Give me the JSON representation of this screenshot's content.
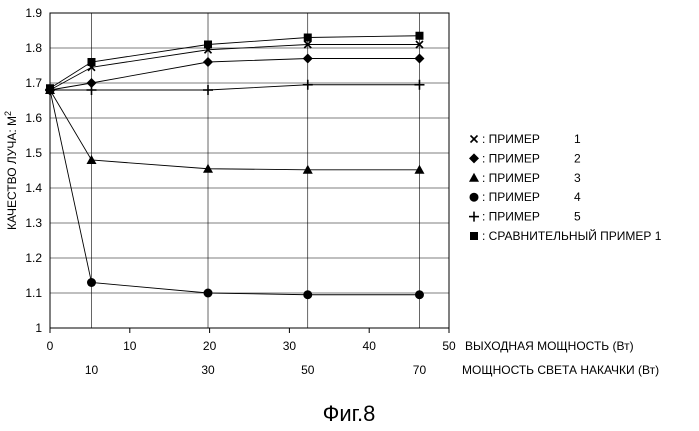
{
  "chart_data": {
    "type": "line",
    "ylabel": "КАЧЕСТВО ЛУЧА: M",
    "ylabel_sup": "2",
    "x_primary_label": "ВЫХОДНАЯ МОЩНОСТЬ (Вт)",
    "x_secondary_label": "МОЩНОСТЬ СВЕТА НАКАЧКИ (Вт)",
    "xlim": [
      0,
      50
    ],
    "ylim": [
      1.0,
      1.9
    ],
    "x_ticks": [
      "0",
      "10",
      "20",
      "30",
      "40",
      "50"
    ],
    "x_secondary_ticks": [
      {
        "label": "10",
        "at": 5.2
      },
      {
        "label": "30",
        "at": 19.8
      },
      {
        "label": "50",
        "at": 32.3
      },
      {
        "label": "70",
        "at": 46.3
      }
    ],
    "y_ticks": [
      "1",
      "1.1",
      "1.2",
      "1.3",
      "1.4",
      "1.5",
      "1.6",
      "1.7",
      "1.8",
      "1.9"
    ],
    "grid": true,
    "legend_position": "right",
    "series": [
      {
        "name": "ПРИМЕР",
        "num": "1",
        "marker": "x",
        "x": [
          0,
          5.2,
          19.8,
          32.3,
          46.3
        ],
        "y": [
          1.68,
          1.745,
          1.795,
          1.81,
          1.81
        ]
      },
      {
        "name": "ПРИМЕР",
        "num": "2",
        "marker": "diamond",
        "x": [
          0,
          5.2,
          19.8,
          32.3,
          46.3
        ],
        "y": [
          1.68,
          1.7,
          1.76,
          1.77,
          1.77
        ]
      },
      {
        "name": "ПРИМЕР",
        "num": "3",
        "marker": "triangle",
        "x": [
          0,
          5.2,
          19.8,
          32.3,
          46.3
        ],
        "y": [
          1.68,
          1.48,
          1.455,
          1.452,
          1.452
        ]
      },
      {
        "name": "ПРИМЕР",
        "num": "4",
        "marker": "circle",
        "x": [
          0,
          5.2,
          19.8,
          32.3,
          46.3
        ],
        "y": [
          1.68,
          1.13,
          1.1,
          1.095,
          1.095
        ]
      },
      {
        "name": "ПРИМЕР",
        "num": "5",
        "marker": "plus",
        "x": [
          0,
          5.2,
          19.8,
          32.3,
          46.3
        ],
        "y": [
          1.68,
          1.68,
          1.68,
          1.695,
          1.695
        ]
      },
      {
        "name": "СРАВНИТЕЛЬНЫЙ ПРИМЕР 1",
        "num": "",
        "marker": "square",
        "x": [
          0,
          5.2,
          19.8,
          32.3,
          46.3
        ],
        "y": [
          1.685,
          1.76,
          1.81,
          1.83,
          1.835
        ]
      }
    ]
  },
  "caption": "Фиг.8"
}
